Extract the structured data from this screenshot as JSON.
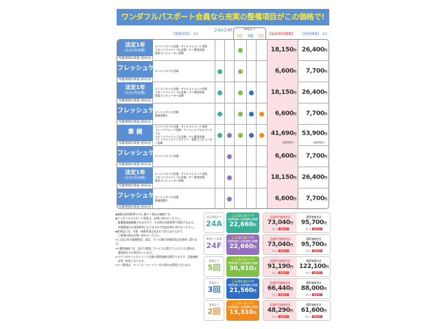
{
  "title": "ワンダフルパスポート会員なら充実の整備項目がこの価格で!",
  "header": {
    "items": "【実施項目】",
    "items_note": "※1",
    "c24a": "24A",
    "c24f": "24F",
    "until": "車検まで",
    "c5": "5回",
    "c3": "3回",
    "c2": "2回",
    "member": "【会員特別価格】",
    "normal": "【通常価格】",
    "normal_note": "※2"
  },
  "colors": {
    "label": "#5b8fd4",
    "24A": "#3aaf9a",
    "24F": "#9370c0",
    "5": "#7fbf4a",
    "3": "#2e6fc4",
    "2": "#f08a1c",
    "title_text": "#ffe93b"
  },
  "rows": [
    {
      "name": "法定1年",
      "sub": "(12か月点検)",
      "time": "作業時間の目安 約60分",
      "tasks": [
        "エンジンオイル交換・オイルエレメント交換",
        "フロントワイパーゴム交換・キー電池交換",
        "車両コンピューター診断"
      ],
      "plans": [
        "5"
      ],
      "member": "18,150",
      "normal": "26,400"
    },
    {
      "name": "フレッシュケア",
      "sub": "",
      "time": "作業時間の目安 約45分",
      "tasks": [
        "エンジンオイル交換"
      ],
      "plans": [
        "24A",
        "5"
      ],
      "member": "6,600",
      "normal": "7,700"
    },
    {
      "name": "法定1年",
      "sub": "(12か月点検)",
      "time": "作業時間の目安 約60分",
      "tasks": [
        "エンジンオイル交換・オイルエレメント交換",
        "フロントワイパーゴム交換・キー電池交換",
        "車両コンピューター診断"
      ],
      "plans": [
        "24A",
        "5",
        "3"
      ],
      "member": "18,150",
      "normal": "26,400"
    },
    {
      "name": "フレッシュケア",
      "sub": "",
      "time": "作業時間の目安 約60分",
      "tasks": [
        "エンジンオイル交換",
        "車検見積り"
      ],
      "plans": [
        "24A",
        "5",
        "3",
        "2"
      ],
      "member": "6,600",
      "normal": "7,700"
    },
    {
      "name": "車 検",
      "sub": "",
      "time": "作業時間の目安 約90分",
      "tasks": [
        "エンジンオイル交換・オイルエレメント交換",
        "ブレーキフルード交換・クーラントプラスプレミアム",
        "フロントワイパーゴム交換・キー電池交換",
        "ブレーキメンテナンスキット・車両コンピューター診断"
      ],
      "plans": [
        "24A",
        "24F",
        "5",
        "3",
        "2"
      ],
      "member": "41,690",
      "normal": "53,900",
      "member_note": "(諸費用別)",
      "normal_note": "(諸費用別)"
    },
    {
      "name": "フレッシュケア",
      "sub": "",
      "time": "作業時間の目安 約45分",
      "tasks": [
        "エンジンオイル交換"
      ],
      "plans": [
        "24F"
      ],
      "member": "6,600",
      "normal": "7,700"
    },
    {
      "name": "法定1年",
      "sub": "(12か月点検)",
      "time": "作業時間の目安 約60分",
      "tasks": [
        "エンジンオイル交換・オイルエレメント交換",
        "フロントワイパーゴム交換・キー電池交換",
        "車両コンピューター診断"
      ],
      "plans": [
        "24F"
      ],
      "member": "18,150",
      "normal": "26,400"
    },
    {
      "name": "フレッシュケア",
      "sub": "",
      "time": "作業時間の目安 約60分",
      "tasks": [
        "エンジンオイル交換",
        "車検見積り"
      ],
      "plans": [
        "24F"
      ],
      "member": "6,600",
      "normal": "7,700"
    }
  ],
  "yen": "円",
  "notes": [
    "◆価格は消費税率10%に基づく税込み価格です。",
    "◆ワンダフルパスポート費用は、お問い合わせください。",
    "　整備実施後精算されますので、その時の消費税率が適用されます。",
    "　作業実施日の消費税率になりますので別途お問い合わせください。",
    "◆各商品には、引取・納車費用は含まれておりませんので、",
    "　ご希望の際はお問い合わせください。",
    "※1上記以外の整備費用、部品、オイル類の交換費用は別途申し受けます。",
    "※2通常価格とは、当社で個別にサービスを受けていただいた場合の",
    "　通常発生する費用をいいます。",
    "※コペンのオイルエレメント交換の通常価格は異なりますが、会員価格",
    "　は同一料金となります。",
    "※キー電池は、キーレス・キーフリー付き車のみ適用となります。"
  ],
  "summary": {
    "save_title": "こんなにおトク!",
    "save_sub": "(通常価格と会員価格の差額)",
    "member_label": "会員特別価格合計",
    "normal_label": "通常価格合計",
    "tax": "税込み",
    "tag": "諸費用別",
    "plans": [
      {
        "key": "24A",
        "top": "次回車検まで",
        "label": "24A",
        "save": "22,660",
        "member": "73,040",
        "normal": "95,700"
      },
      {
        "key": "24F",
        "top": "車検から車検",
        "label": "24F",
        "save": "22,660",
        "member": "73,040",
        "normal": "95,700"
      },
      {
        "key": "5",
        "top": "車検まで",
        "label": "5回",
        "save": "30,910",
        "member": "91,190",
        "normal": "122,100"
      },
      {
        "key": "3",
        "top": "車検まで",
        "label": "3回",
        "save": "21,560",
        "member": "66,440",
        "normal": "88,000"
      },
      {
        "key": "2",
        "top": "車検まで",
        "label": "2回",
        "save": "13,310",
        "member": "48,290",
        "normal": "61,600"
      }
    ]
  }
}
